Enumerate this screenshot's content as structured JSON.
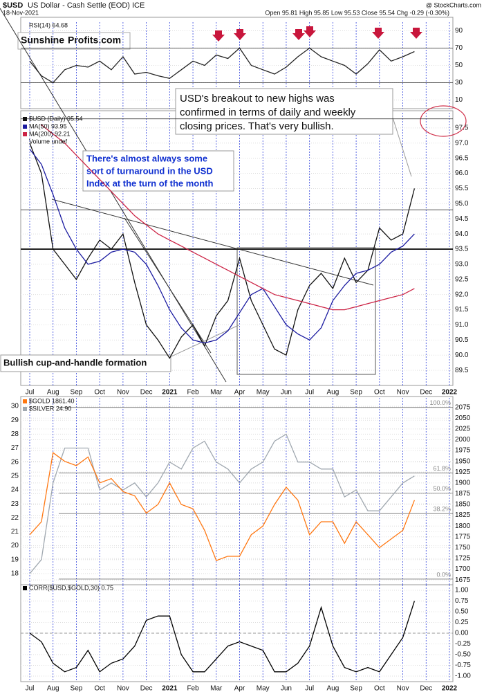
{
  "header": {
    "symbol": "$USD",
    "name": "US Dollar - Cash Settle (EOD) ICE",
    "date": "18-Nov-2021",
    "quote": "Open 95.81 High 95.85 Low 95.53 Close 95.54 Chg -0.29 (-0.30%)",
    "credit": "@ StockCharts.com"
  },
  "logo": {
    "first": "Sunshine",
    "second": "Profits.com"
  },
  "chart_data": [
    {
      "type": "line",
      "title": "RSI(14) 64.68",
      "ylim": [
        0,
        100
      ],
      "yticks": [
        10,
        30,
        50,
        70,
        90
      ],
      "reference_lines": [
        30,
        70
      ],
      "series": [
        {
          "name": "RSI(14) 64.68",
          "color": "#222222",
          "values": [
            55,
            38,
            30,
            45,
            50,
            48,
            55,
            45,
            60,
            40,
            42,
            38,
            35,
            45,
            55,
            50,
            62,
            58,
            70,
            50,
            45,
            40,
            48,
            60,
            70,
            60,
            55,
            50,
            40,
            52,
            68,
            55,
            60,
            66,
            null,
            null,
            null
          ]
        }
      ]
    },
    {
      "type": "line",
      "ylim": [
        89,
        98
      ],
      "yticks": [
        89.5,
        {
          "value": 90,
          "label": "90.0"
        },
        90.5,
        {
          "value": 91,
          "label": "91.0"
        },
        91.5,
        {
          "value": 92,
          "label": "92.0"
        },
        92.5,
        {
          "value": 93,
          "label": "93.0"
        },
        93.5,
        {
          "value": 94,
          "label": "94.0"
        },
        94.5,
        {
          "value": 95,
          "label": "95.0"
        },
        95.5,
        {
          "value": 96,
          "label": "96.0"
        },
        96.5,
        {
          "value": 97,
          "label": "97.0"
        },
        97.5
      ],
      "reference_lines": [
        93.5,
        94.8,
        97.8
      ],
      "categories": [
        "Jul",
        null,
        "Aug",
        null,
        "Sep",
        null,
        "Oct",
        null,
        "Nov",
        null,
        "Dec",
        null,
        "2021",
        null,
        "Feb",
        null,
        "Mar",
        null,
        "Apr",
        null,
        "May",
        null,
        "Jun",
        null,
        "Jul",
        null,
        "Aug",
        null,
        "Sep",
        null,
        "Oct",
        null,
        "Nov",
        null,
        "Dec",
        null,
        "2022"
      ],
      "legend_extra": "Volume undef",
      "series": [
        {
          "name": "$USD (Daily) 95.54",
          "color": "#111111",
          "values": [
            97.0,
            96.0,
            93.5,
            93.0,
            92.5,
            93.2,
            93.8,
            93.5,
            94.0,
            92.4,
            91.0,
            90.5,
            89.9,
            90.6,
            91.0,
            90.3,
            91.3,
            91.8,
            93.2,
            91.8,
            91.0,
            90.2,
            90.0,
            91.5,
            92.3,
            92.7,
            92.2,
            93.2,
            92.4,
            92.8,
            94.2,
            93.8,
            94.0,
            95.5,
            null,
            null,
            null
          ]
        },
        {
          "name": "MA(50) 93.95",
          "color": "#1a1aa0",
          "values": [
            96.8,
            96.3,
            95.3,
            94.2,
            93.5,
            93.0,
            93.1,
            93.4,
            93.5,
            93.4,
            93.0,
            92.3,
            91.5,
            90.9,
            90.5,
            90.4,
            90.5,
            90.8,
            91.4,
            92.0,
            92.2,
            91.6,
            91.0,
            90.7,
            90.5,
            90.9,
            91.8,
            92.3,
            92.7,
            92.8,
            93.0,
            93.4,
            93.6,
            94.0,
            null,
            null,
            null
          ]
        },
        {
          "name": "MA(200) 92.21",
          "color": "#cc2244",
          "values": [
            null,
            97.6,
            97.3,
            97.0,
            96.6,
            96.2,
            95.8,
            95.4,
            95.0,
            94.6,
            94.3,
            94.0,
            93.8,
            93.6,
            93.4,
            93.2,
            93.0,
            92.8,
            92.6,
            92.4,
            92.2,
            92.0,
            91.9,
            91.8,
            91.7,
            91.6,
            91.5,
            91.5,
            91.6,
            91.7,
            91.8,
            91.9,
            92.0,
            92.2,
            null,
            null,
            null
          ]
        }
      ],
      "annotations": [
        [
          "USD's breakout to new highs was",
          "confirmed in terms of daily and weekly",
          "closing prices. That's very bullish."
        ],
        [
          "There's almost always some",
          "sort of turnaround in the USD",
          "Index at the turn of the month"
        ],
        [
          "Bullish cup-and-handle formation"
        ]
      ]
    },
    {
      "type": "line",
      "ylim": [
        17.2,
        30.6
      ],
      "yticks": [
        18,
        19,
        20,
        21,
        22,
        23,
        24,
        25,
        26,
        27,
        28,
        29,
        30
      ],
      "y2lim": [
        1664,
        2097
      ],
      "y2ticks": [
        1675,
        1700,
        1725,
        1750,
        1775,
        1800,
        1825,
        1850,
        1875,
        1900,
        1925,
        1950,
        1975,
        2000,
        2025,
        2050,
        2075
      ],
      "fib_levels": [
        {
          "value": 2075,
          "label": "100.0%"
        },
        {
          "value": 1923,
          "label": "61.8%"
        },
        {
          "value": 1876,
          "label": "50.0%"
        },
        {
          "value": 1829,
          "label": "38.2%"
        },
        {
          "value": 1677,
          "label": "0.0%"
        }
      ],
      "series": [
        {
          "name": "$SILVER 24.90",
          "color": "#a0a8b0",
          "values": [
            18.0,
            19.0,
            24.5,
            27.0,
            27.0,
            27.0,
            24.0,
            24.5,
            24.0,
            24.5,
            23.5,
            24.5,
            26.0,
            25.5,
            27.0,
            27.5,
            26.0,
            25.5,
            24.5,
            25.5,
            26.0,
            27.5,
            28.0,
            26.0,
            26.0,
            25.5,
            25.5,
            23.5,
            24.0,
            22.5,
            22.5,
            23.5,
            24.5,
            25.0,
            null,
            null,
            null
          ]
        },
        {
          "name": "$GOLD 1861.40",
          "color": "#ff7711",
          "axis": "y2",
          "values": [
            1780,
            1810,
            1970,
            1950,
            1940,
            1960,
            1900,
            1910,
            1880,
            1870,
            1830,
            1850,
            1900,
            1850,
            1840,
            1790,
            1720,
            1730,
            1730,
            1780,
            1800,
            1850,
            1890,
            1860,
            1780,
            1810,
            1810,
            1760,
            1810,
            1780,
            1750,
            1770,
            1790,
            1860,
            null,
            null,
            null
          ]
        }
      ]
    },
    {
      "type": "line",
      "ylim": [
        -1.13,
        1.13
      ],
      "yticks": [
        {
          "value": 1,
          "label": "1.00"
        },
        0.75,
        {
          "value": 0.5,
          "label": "0.50"
        },
        0.25,
        {
          "value": 0,
          "label": "0.00"
        },
        -0.25,
        {
          "value": -0.5,
          "label": "-0.50"
        },
        -0.75,
        {
          "value": -1,
          "label": "-1.00"
        }
      ],
      "reference_lines": [
        0
      ],
      "categories": [
        "Jul",
        null,
        "Aug",
        null,
        "Sep",
        null,
        "Oct",
        null,
        "Nov",
        null,
        "Dec",
        null,
        "2021",
        null,
        "Feb",
        null,
        "Mar",
        null,
        "Apr",
        null,
        "May",
        null,
        "Jun",
        null,
        "Jul",
        null,
        "Aug",
        null,
        "Sep",
        null,
        "Oct",
        null,
        "Nov",
        null,
        "Dec",
        null,
        "2022"
      ],
      "series": [
        {
          "name": "CORR($USD,$GOLD,30) 0.75",
          "color": "#000000",
          "values": [
            0.0,
            -0.2,
            -0.7,
            -0.9,
            -0.8,
            -0.4,
            -0.9,
            -0.7,
            -0.6,
            -0.3,
            0.3,
            0.4,
            0.4,
            -0.5,
            -0.9,
            -0.9,
            -0.6,
            -0.3,
            -0.2,
            -0.3,
            -0.4,
            -0.9,
            -0.9,
            -0.7,
            -0.3,
            0.6,
            -0.3,
            -0.8,
            -0.9,
            -0.8,
            -0.9,
            -0.5,
            -0.1,
            0.75,
            null,
            null,
            null
          ]
        }
      ]
    }
  ]
}
